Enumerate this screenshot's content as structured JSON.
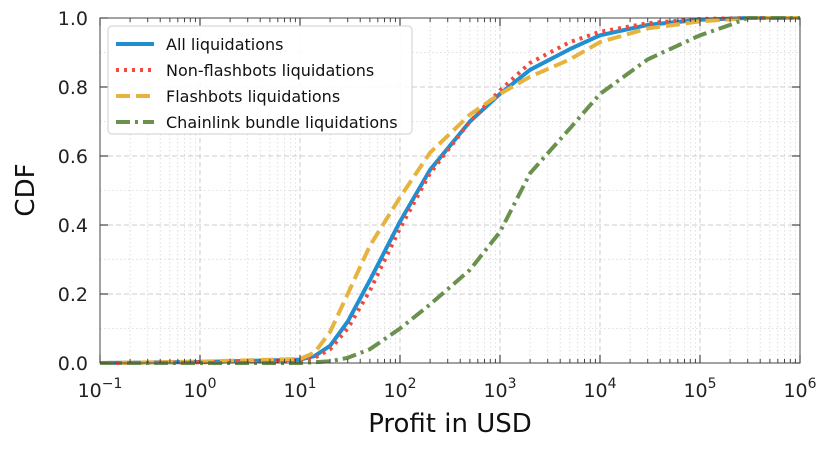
{
  "chart_data": {
    "type": "line",
    "xlabel": "Profit in USD",
    "ylabel": "CDF",
    "x_scale": "log",
    "xlim": [
      0.1,
      1000000
    ],
    "ylim": [
      0,
      1
    ],
    "x_ticks": [
      {
        "base": "10",
        "exp": "−1",
        "value": 0.1
      },
      {
        "base": "10",
        "exp": "0",
        "value": 1
      },
      {
        "base": "10",
        "exp": "1",
        "value": 10
      },
      {
        "base": "10",
        "exp": "2",
        "value": 100
      },
      {
        "base": "10",
        "exp": "3",
        "value": 1000
      },
      {
        "base": "10",
        "exp": "4",
        "value": 10000
      },
      {
        "base": "10",
        "exp": "5",
        "value": 100000
      },
      {
        "base": "10",
        "exp": "6",
        "value": 1000000
      }
    ],
    "y_ticks": [
      {
        "label": "0.0",
        "value": 0
      },
      {
        "label": "0.2",
        "value": 0.2
      },
      {
        "label": "0.4",
        "value": 0.4
      },
      {
        "label": "0.6",
        "value": 0.6
      },
      {
        "label": "0.8",
        "value": 0.8
      },
      {
        "label": "1.0",
        "value": 1.0
      }
    ],
    "grid": true,
    "legend_position": "top-left",
    "series": [
      {
        "name": "All liquidations",
        "color": "#1f8fd1",
        "style": "solid",
        "x": [
          0.1,
          1,
          10,
          14,
          20,
          30,
          50,
          100,
          200,
          500,
          1000,
          2000,
          5000,
          10000,
          30000,
          100000,
          300000,
          1000000
        ],
        "y": [
          0.0,
          0.003,
          0.01,
          0.02,
          0.05,
          0.12,
          0.24,
          0.41,
          0.56,
          0.7,
          0.78,
          0.85,
          0.91,
          0.95,
          0.98,
          0.995,
          1.0,
          1.0
        ]
      },
      {
        "name": "Non-flashbots liquidations",
        "color": "#f04a3c",
        "style": "dotted",
        "x": [
          0.1,
          1,
          10,
          14,
          20,
          30,
          50,
          100,
          200,
          500,
          1000,
          2000,
          5000,
          10000,
          30000,
          100000,
          300000,
          1000000
        ],
        "y": [
          0.0,
          0.002,
          0.008,
          0.015,
          0.04,
          0.1,
          0.21,
          0.39,
          0.55,
          0.7,
          0.79,
          0.87,
          0.93,
          0.96,
          0.985,
          0.997,
          1.0,
          1.0
        ]
      },
      {
        "name": "Flashbots liquidations",
        "color": "#e6b33f",
        "style": "dashed",
        "x": [
          0.1,
          1,
          10,
          14,
          20,
          30,
          50,
          100,
          200,
          500,
          1000,
          2000,
          5000,
          10000,
          30000,
          100000,
          300000,
          1000000
        ],
        "y": [
          0.0,
          0.004,
          0.012,
          0.03,
          0.09,
          0.2,
          0.34,
          0.48,
          0.61,
          0.72,
          0.78,
          0.83,
          0.88,
          0.93,
          0.97,
          0.99,
          1.0,
          1.0
        ]
      },
      {
        "name": "Chainlink bundle liquidations",
        "color": "#6b914e",
        "style": "dashdot",
        "x": [
          0.1,
          10,
          20,
          30,
          50,
          100,
          200,
          500,
          1000,
          2000,
          5000,
          10000,
          30000,
          100000,
          200000,
          300000,
          1000000
        ],
        "y": [
          0.0,
          0.0,
          0.005,
          0.015,
          0.04,
          0.1,
          0.17,
          0.27,
          0.38,
          0.55,
          0.68,
          0.78,
          0.88,
          0.95,
          0.98,
          1.0,
          1.0
        ]
      }
    ]
  }
}
